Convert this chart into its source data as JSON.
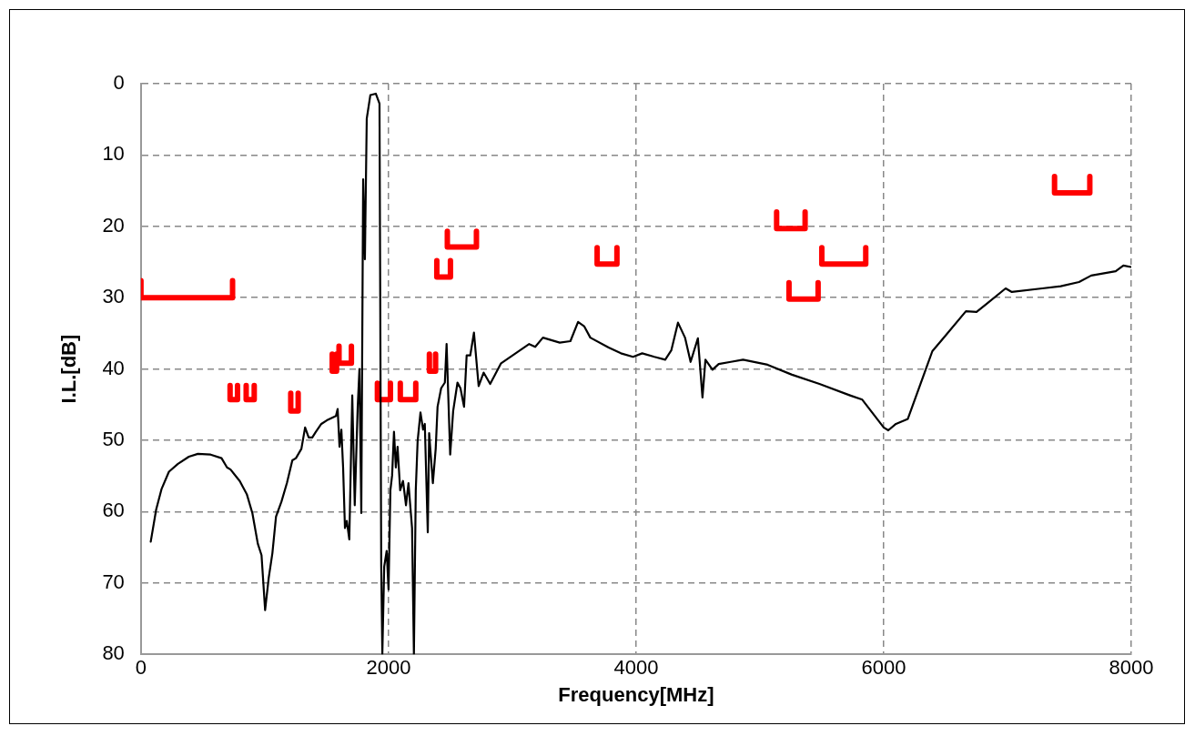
{
  "chart_data": {
    "type": "line",
    "xlabel": "Frequency[MHz]",
    "ylabel": "I.L.[dB]",
    "xlim": [
      0,
      8000
    ],
    "xticks": [
      0,
      2000,
      4000,
      6000,
      8000
    ],
    "ylim": [
      80,
      0
    ],
    "yticks": [
      0,
      10,
      20,
      30,
      40,
      50,
      60,
      70,
      80
    ],
    "grid": true,
    "legend": false,
    "marker": "none",
    "line_style": "solid",
    "series": [
      {
        "color": "#000000",
        "x": [
          79,
          123,
          167,
          226,
          299,
          387,
          460,
          563,
          651,
          695,
          724,
          798,
          856,
          900,
          944,
          974,
          1003,
          1032,
          1062,
          1091,
          1135,
          1179,
          1223,
          1252,
          1296,
          1326,
          1355,
          1384,
          1413,
          1457,
          1501,
          1575,
          1589,
          1604,
          1619,
          1633,
          1648,
          1663,
          1683,
          1707,
          1727,
          1751,
          1765,
          1780,
          1795,
          1809,
          1824,
          1853,
          1897,
          1927,
          1941,
          1950,
          1965,
          1985,
          2000,
          2015,
          2029,
          2044,
          2059,
          2073,
          2094,
          2117,
          2141,
          2161,
          2190,
          2205,
          2220,
          2235,
          2258,
          2279,
          2293,
          2317,
          2328,
          2358,
          2381,
          2396,
          2425,
          2455,
          2469,
          2498,
          2522,
          2557,
          2581,
          2610,
          2631,
          2660,
          2690,
          2728,
          2768,
          2821,
          2909,
          3136,
          3185,
          3247,
          3383,
          3469,
          3531,
          3580,
          3630,
          3778,
          3877,
          3975,
          4049,
          4148,
          4235,
          4284,
          4338,
          4395,
          4440,
          4499,
          4536,
          4560,
          4617,
          4667,
          4765,
          4864,
          5062,
          5259,
          5481,
          5728,
          5827,
          6000,
          6037,
          6099,
          6195,
          6393,
          6491,
          6664,
          6750,
          6837,
          6985,
          7035,
          7281,
          7430,
          7578,
          7676,
          7874,
          7936,
          7998
        ],
        "values": [
          64.2,
          59.7,
          56.8,
          54.4,
          53.3,
          52.3,
          51.9,
          52.0,
          52.5,
          53.8,
          54.1,
          55.7,
          57.6,
          60.2,
          64.5,
          66.1,
          73.8,
          69.3,
          65.8,
          60.7,
          58.6,
          56.0,
          52.8,
          52.5,
          51.2,
          48.2,
          49.6,
          49.6,
          48.8,
          47.7,
          47.2,
          46.6,
          45.6,
          50.9,
          48.5,
          53.8,
          62.3,
          61.3,
          63.9,
          43.7,
          59.1,
          45.3,
          40.0,
          60.2,
          13.4,
          24.6,
          4.9,
          1.6,
          1.4,
          2.8,
          67.7,
          80,
          67.7,
          65.5,
          70.9,
          57.0,
          54.9,
          48.8,
          53.8,
          50.9,
          57.0,
          55.7,
          59.1,
          56.0,
          62.3,
          80,
          57.0,
          50.1,
          46.1,
          48.5,
          47.7,
          62.9,
          49.0,
          56.0,
          51.2,
          45.3,
          42.7,
          41.9,
          36.5,
          52.0,
          45.9,
          41.9,
          42.7,
          45.3,
          38.1,
          38.1,
          34.9,
          42.4,
          40.5,
          42.1,
          39.2,
          36.5,
          36.9,
          35.6,
          36.3,
          36.1,
          33.4,
          34.0,
          35.6,
          37.0,
          37.8,
          38.3,
          37.8,
          38.3,
          38.7,
          37.4,
          33.5,
          35.6,
          39.0,
          35.7,
          44.0,
          38.7,
          40.1,
          39.3,
          39.0,
          38.7,
          39.4,
          40.8,
          42.1,
          43.7,
          44.3,
          48.2,
          48.6,
          47.7,
          47.0,
          37.5,
          35.5,
          31.9,
          32.0,
          30.8,
          28.7,
          29.2,
          28.7,
          28.4,
          27.8,
          26.9,
          26.3,
          25.5,
          25.7
        ]
      },
      {
        "color": "#ff0000",
        "x": [
          0,
          0,
          740,
          740
        ],
        "values": [
          27.6,
          30,
          30,
          27.6
        ]
      },
      {
        "color": "#ff0000",
        "x": [
          720,
          720,
          780,
          780
        ],
        "values": [
          42.3,
          44.3,
          44.3,
          42.3
        ]
      },
      {
        "color": "#ff0000",
        "x": [
          850,
          850,
          915,
          915
        ],
        "values": [
          42.3,
          44.3,
          44.3,
          42.3
        ]
      },
      {
        "color": "#ff0000",
        "x": [
          1210,
          1210,
          1270,
          1270
        ],
        "values": [
          43.4,
          45.9,
          45.9,
          43.4
        ]
      },
      {
        "color": "#ff0000",
        "x": [
          1545,
          1545,
          1580,
          1580
        ],
        "values": [
          37.9,
          40.3,
          40.3,
          37.9
        ]
      },
      {
        "color": "#ff0000",
        "x": [
          1600,
          1600,
          1700,
          1700
        ],
        "values": [
          36.8,
          39.2,
          39.2,
          36.8
        ]
      },
      {
        "color": "#ff0000",
        "x": [
          1910,
          1910,
          2015,
          2015
        ],
        "values": [
          42.0,
          44.3,
          44.3,
          42.0
        ]
      },
      {
        "color": "#ff0000",
        "x": [
          2095,
          2095,
          2220,
          2220
        ],
        "values": [
          42.0,
          44.3,
          44.3,
          42.0
        ]
      },
      {
        "color": "#ff0000",
        "x": [
          2330,
          2330,
          2380,
          2380
        ],
        "values": [
          37.9,
          40.3,
          40.3,
          37.9
        ]
      },
      {
        "color": "#ff0000",
        "x": [
          2390,
          2390,
          2500,
          2500
        ],
        "values": [
          24.8,
          27.1,
          27.1,
          24.8
        ]
      },
      {
        "color": "#ff0000",
        "x": [
          2475,
          2475,
          2710,
          2710
        ],
        "values": [
          20.7,
          22.9,
          22.9,
          20.7
        ]
      },
      {
        "color": "#ff0000",
        "x": [
          3685,
          3685,
          3845,
          3845
        ],
        "values": [
          23.0,
          25.3,
          25.3,
          23.0
        ]
      },
      {
        "color": "#ff0000",
        "x": [
          5135,
          5135,
          5365,
          5365
        ],
        "values": [
          18.0,
          20.3,
          20.3,
          18.0
        ]
      },
      {
        "color": "#ff0000",
        "x": [
          5500,
          5500,
          5855,
          5855
        ],
        "values": [
          23.0,
          25.3,
          25.3,
          23.0
        ]
      },
      {
        "color": "#ff0000",
        "x": [
          5235,
          5235,
          5470,
          5470
        ],
        "values": [
          27.9,
          30.2,
          30.2,
          27.9
        ]
      },
      {
        "color": "#ff0000",
        "x": [
          7380,
          7380,
          7665,
          7665
        ],
        "values": [
          13.0,
          15.3,
          15.3,
          13.0
        ]
      }
    ]
  }
}
